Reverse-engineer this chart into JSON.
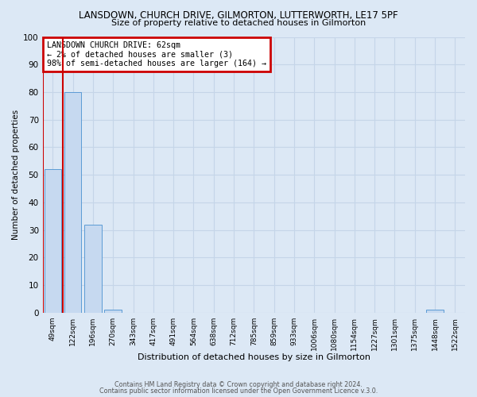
{
  "title": "LANSDOWN, CHURCH DRIVE, GILMORTON, LUTTERWORTH, LE17 5PF",
  "subtitle": "Size of property relative to detached houses in Gilmorton",
  "xlabel": "Distribution of detached houses by size in Gilmorton",
  "ylabel": "Number of detached properties",
  "bar_labels": [
    "49sqm",
    "122sqm",
    "196sqm",
    "270sqm",
    "343sqm",
    "417sqm",
    "491sqm",
    "564sqm",
    "638sqm",
    "712sqm",
    "785sqm",
    "859sqm",
    "933sqm",
    "1006sqm",
    "1080sqm",
    "1154sqm",
    "1227sqm",
    "1301sqm",
    "1375sqm",
    "1448sqm",
    "1522sqm"
  ],
  "bar_values": [
    52,
    80,
    32,
    1,
    0,
    0,
    0,
    0,
    0,
    0,
    0,
    0,
    0,
    0,
    0,
    0,
    0,
    0,
    0,
    1,
    0
  ],
  "bar_color": "#c6d9f0",
  "bar_edge_color": "#5b9bd5",
  "highlight_edge_color": "#cc0000",
  "annotation_box_text": "LANSDOWN CHURCH DRIVE: 62sqm\n← 2% of detached houses are smaller (3)\n98% of semi-detached houses are larger (164) →",
  "annotation_box_color": "#ffffff",
  "annotation_box_edge_color": "#cc0000",
  "vertical_line_x": 0.5,
  "ylim": [
    0,
    100
  ],
  "yticks": [
    0,
    10,
    20,
    30,
    40,
    50,
    60,
    70,
    80,
    90,
    100
  ],
  "grid_color": "#c5d5e8",
  "background_color": "#dce8f5",
  "footer_line1": "Contains HM Land Registry data © Crown copyright and database right 2024.",
  "footer_line2": "Contains public sector information licensed under the Open Government Licence v.3.0."
}
